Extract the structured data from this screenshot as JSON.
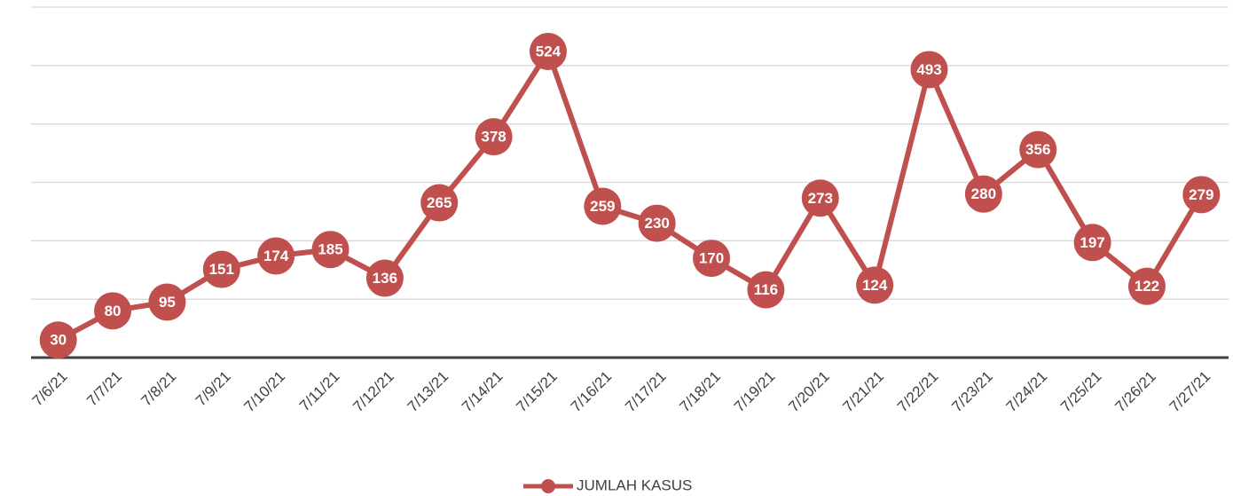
{
  "chart_data": {
    "type": "line",
    "categories": [
      "7/6/21",
      "7/7/21",
      "7/8/21",
      "7/9/21",
      "7/10/21",
      "7/11/21",
      "7/12/21",
      "7/13/21",
      "7/14/21",
      "7/15/21",
      "7/16/21",
      "7/17/21",
      "7/18/21",
      "7/19/21",
      "7/20/21",
      "7/21/21",
      "7/22/21",
      "7/23/21",
      "7/24/21",
      "7/25/21",
      "7/26/21",
      "7/27/21"
    ],
    "series": [
      {
        "name": "JUMLAH KASUS",
        "color": "#c0504d",
        "values": [
          30,
          80,
          95,
          151,
          174,
          185,
          136,
          265,
          378,
          524,
          259,
          230,
          170,
          116,
          273,
          124,
          493,
          280,
          356,
          197,
          122,
          279
        ]
      }
    ],
    "ylim": [
      0,
      600
    ],
    "yticks": [
      0,
      100,
      200,
      300,
      400,
      500,
      600
    ],
    "grid": true,
    "legend": "bottom"
  }
}
